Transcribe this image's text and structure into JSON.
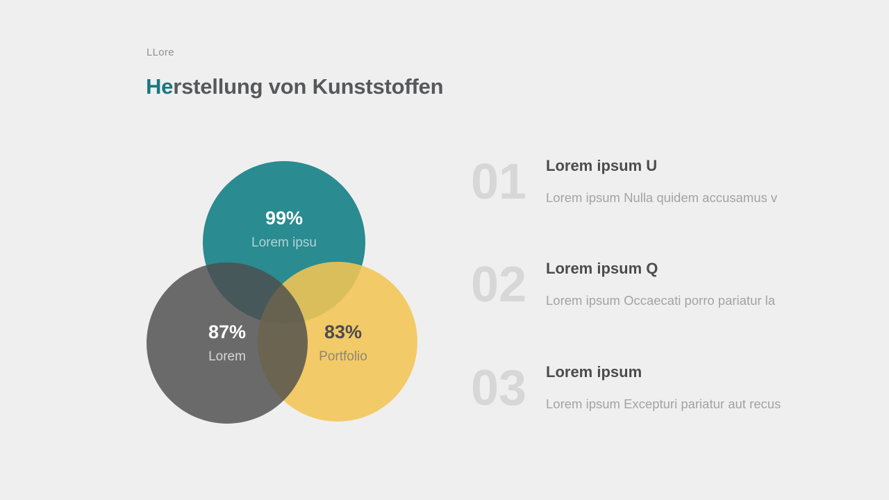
{
  "slide": {
    "background": "#efefef"
  },
  "header": {
    "eyebrow": "LLore",
    "title_accent": "He",
    "title_rest": "rstellung von Kunststoffen",
    "accent_color": "#17797f",
    "title_color": "#57585a"
  },
  "venn": {
    "type": "venn",
    "circles": [
      {
        "name": "teal",
        "value": 99,
        "percent": "99%",
        "label": "Lorem ipsu",
        "color": "#2a8b90"
      },
      {
        "name": "yellow",
        "value": 83,
        "percent": "83%",
        "label": "Portfolio",
        "color": "rgba(243,197,84,0.88)"
      },
      {
        "name": "gray",
        "value": 87,
        "percent": "87%",
        "label": "Lorem",
        "color": "rgba(77,77,77,0.82)"
      }
    ]
  },
  "items": [
    {
      "number": "01",
      "heading": "Lorem ipsum U",
      "description": "Lorem ipsum Nulla quidem accusamus v"
    },
    {
      "number": "02",
      "heading": "Lorem ipsum Q",
      "description": "Lorem ipsum Occaecati porro pariatur la"
    },
    {
      "number": "03",
      "heading": "Lorem ipsum",
      "description": "Lorem ipsum Excepturi pariatur aut recus"
    }
  ]
}
